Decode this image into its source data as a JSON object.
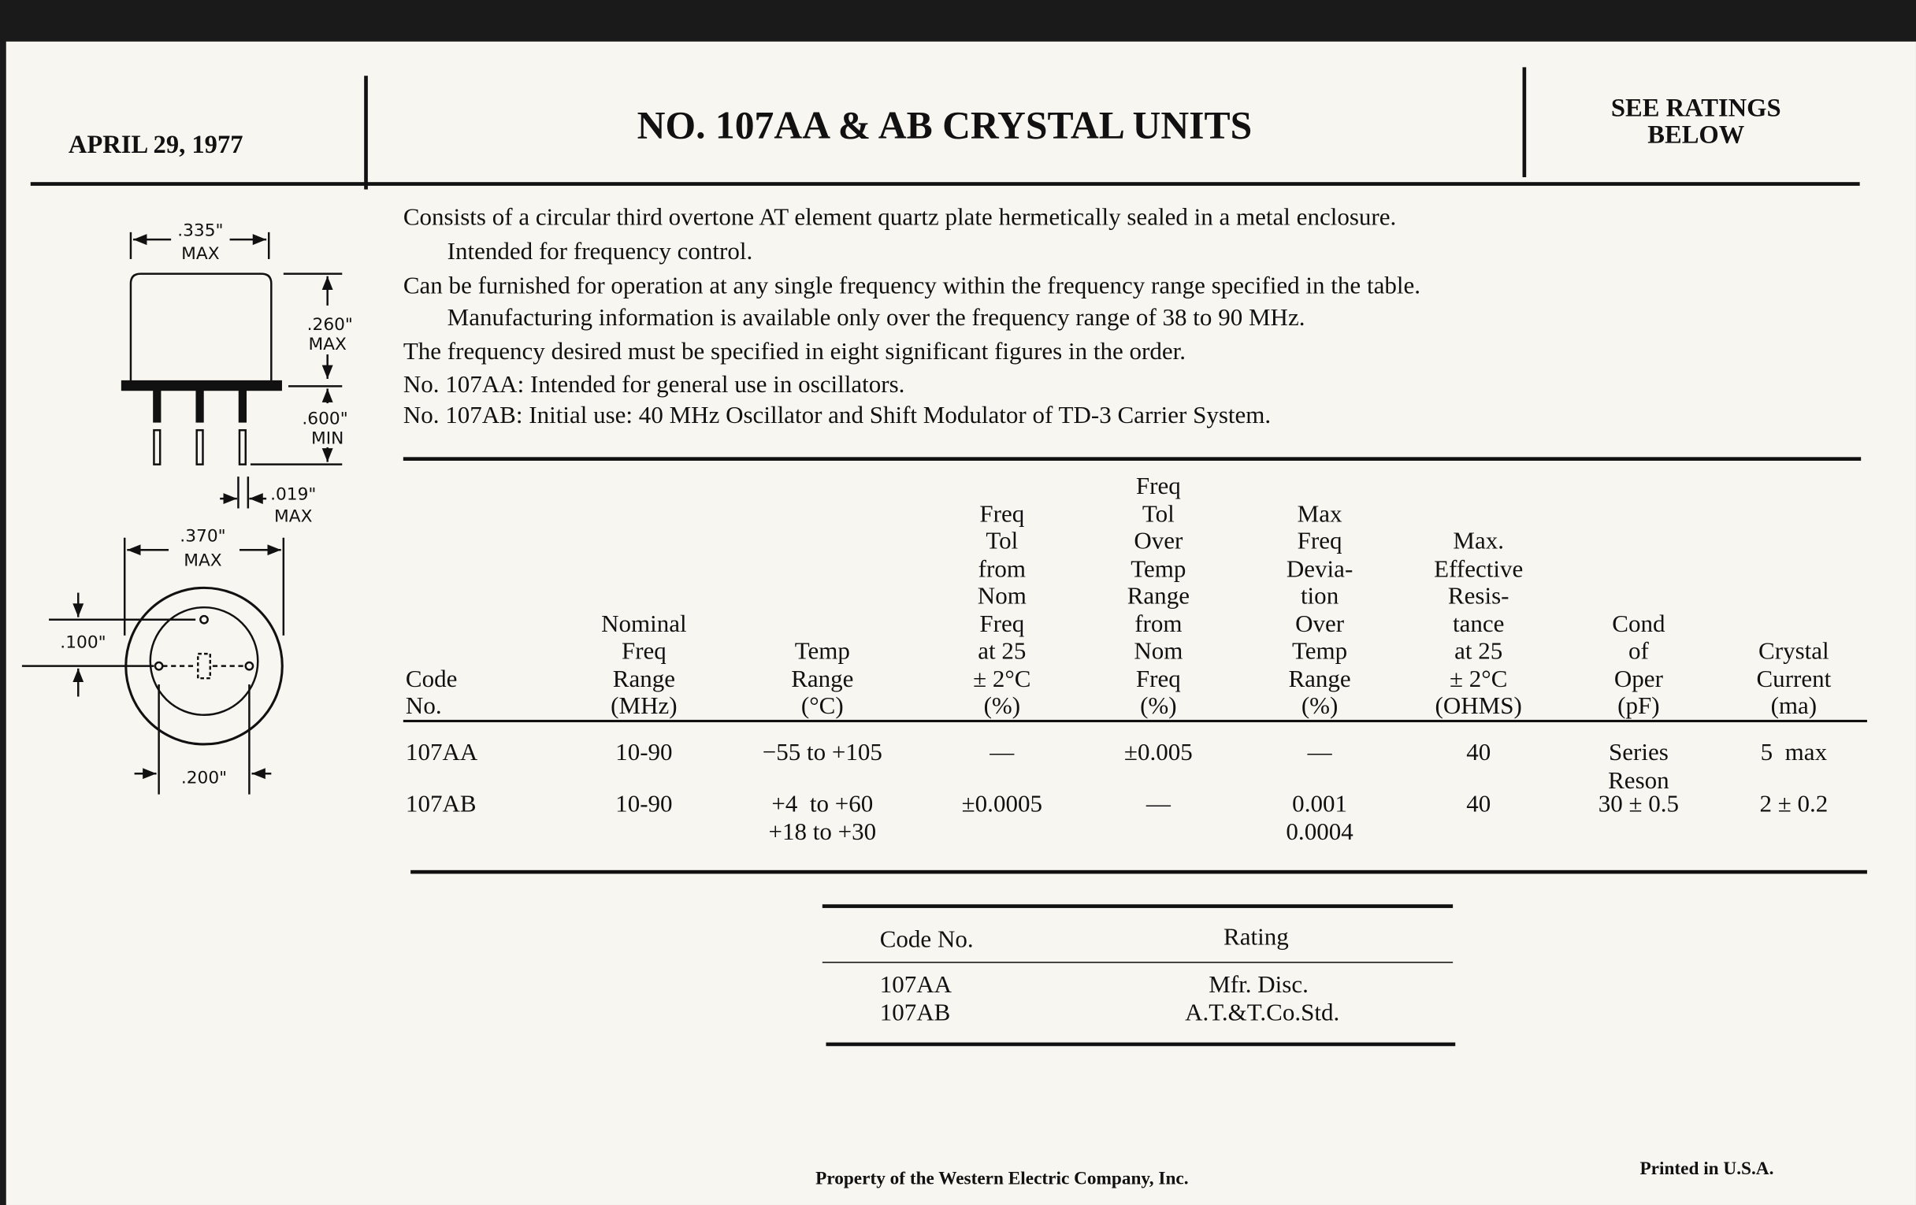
{
  "header": {
    "date": "APRIL 29, 1977",
    "title": "NO. 107AA & AB CRYSTAL UNITS",
    "ratings": [
      "SEE RATINGS",
      "BELOW"
    ]
  },
  "diagram": {
    "labels": [
      ".335\"",
      "MAX",
      ".260\"",
      "MAX",
      ".600\"",
      "MIN",
      ".019\"",
      "MAX",
      ".370\"",
      "MAX",
      ".100\"",
      ".200\""
    ]
  },
  "description": [
    "Consists of a circular third overtone AT element quartz plate hermetically sealed in a metal enclosure.",
    "Intended for frequency control.",
    "Can be furnished for operation at any single frequency within the frequency range specified in the table.",
    "Manufacturing information is available only over the frequency range of 38 to 90 MHz.",
    "The frequency desired must be specified in eight significant figures in the order.",
    "No. 107AA: Intended for general use in oscillators.",
    "No. 107AB: Initial use: 40 MHz Oscillator and Shift Modulator of TD-3 Carrier System."
  ],
  "table": {
    "headers": [
      [
        "Code",
        "No."
      ],
      [
        "Nominal",
        "Freq",
        "Range",
        "(MHz)"
      ],
      [
        "Temp",
        "Range",
        "(°C)"
      ],
      [
        "Freq",
        "Tol",
        "from",
        "Nom",
        "Freq",
        "at 25",
        "± 2°C",
        "(%)"
      ],
      [
        "Freq",
        "Tol",
        "Over",
        "Temp",
        "Range",
        "from",
        "Nom",
        "Freq",
        "(%)"
      ],
      [
        "Max",
        "Freq",
        "Devia-",
        "tion",
        "Over",
        "Temp",
        "Range",
        "(%)"
      ],
      [
        "Max.",
        "Effective",
        "Resis-",
        "tance",
        "at 25",
        "± 2°C",
        "(OHMS)"
      ],
      [
        "Cond",
        "of",
        "Oper",
        "(pF)"
      ],
      [
        "Crystal",
        "Current",
        "(ma)"
      ]
    ],
    "rows": [
      [
        [
          "107AA"
        ],
        [
          "10-90"
        ],
        [
          "−55 to +105"
        ],
        [
          "—"
        ],
        [
          "±0.005"
        ],
        [
          "—"
        ],
        [
          "40"
        ],
        [
          "Series",
          "Reson"
        ],
        [
          "5  max"
        ]
      ],
      [
        [
          "107AB"
        ],
        [
          "10-90"
        ],
        [
          "+4  to +60",
          "+18 to +30"
        ],
        [
          "±0.0005"
        ],
        [
          "—"
        ],
        [
          "0.001",
          "0.0004"
        ],
        [
          "40"
        ],
        [
          "30 ± 0.5"
        ],
        [
          "2 ± 0.2"
        ]
      ]
    ]
  },
  "ratings_table": {
    "headers": [
      "Code No.",
      "Rating"
    ],
    "rows": [
      [
        "107AA",
        "Mfr. Disc."
      ],
      [
        "107AB",
        "A.T.&T.Co.Std."
      ]
    ]
  },
  "footer": {
    "property": "Property of the Western Electric Company, Inc.",
    "printed": "Printed in U.S.A."
  }
}
